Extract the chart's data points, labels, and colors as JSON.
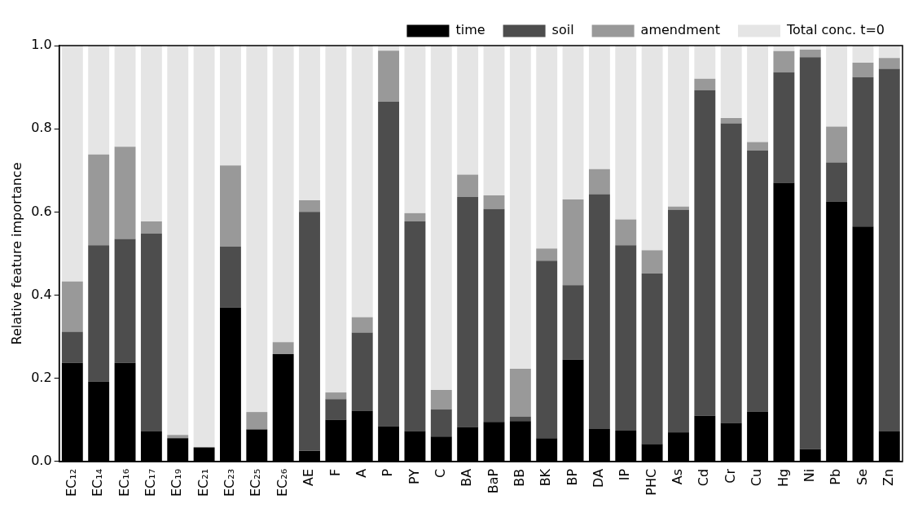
{
  "chart_data": {
    "type": "bar",
    "stacked": true,
    "ylabel": "Relative feature importance",
    "categories": [
      "EC₁₂",
      "EC₁₄",
      "EC₁₆",
      "EC₁₇",
      "EC₁₉",
      "EC₂₁",
      "EC₂₃",
      "EC₂₅",
      "EC₂₆",
      "AE",
      "F",
      "A",
      "P",
      "PY",
      "C",
      "BA",
      "BaP",
      "BB",
      "BK",
      "BP",
      "DA",
      "IP",
      "PHC",
      "As",
      "Cd",
      "Cr",
      "Cu",
      "Hg",
      "Ni",
      "Pb",
      "Se",
      "Zn"
    ],
    "series": [
      {
        "name": "time",
        "color": "#000000",
        "values": [
          0.237,
          0.192,
          0.237,
          0.072,
          0.056,
          0.034,
          0.37,
          0.077,
          0.258,
          0.026,
          0.1,
          0.122,
          0.085,
          0.073,
          0.06,
          0.083,
          0.095,
          0.097,
          0.056,
          0.245,
          0.078,
          0.074,
          0.042,
          0.07,
          0.11,
          0.093,
          0.12,
          0.67,
          0.03,
          0.625,
          0.565,
          0.072
        ]
      },
      {
        "name": "soil",
        "color": "#4d4d4d",
        "values": [
          0.075,
          0.328,
          0.298,
          0.476,
          0,
          0,
          0.147,
          0,
          0,
          0.574,
          0.05,
          0.188,
          0.78,
          0.504,
          0.065,
          0.553,
          0.512,
          0.011,
          0.427,
          0.179,
          0.565,
          0.446,
          0.41,
          0.535,
          0.783,
          0.72,
          0.628,
          0.266,
          0.942,
          0.094,
          0.359,
          0.872
        ]
      },
      {
        "name": "amendment",
        "color": "#999999",
        "values": [
          0.121,
          0.218,
          0.222,
          0.029,
          0.008,
          0,
          0.195,
          0.042,
          0.029,
          0.028,
          0.016,
          0.037,
          0.123,
          0.02,
          0.047,
          0.054,
          0.033,
          0.115,
          0.029,
          0.206,
          0.06,
          0.062,
          0.056,
          0.008,
          0.027,
          0.013,
          0.02,
          0.051,
          0.018,
          0.086,
          0.035,
          0.026
        ]
      },
      {
        "name": "Total conc. t=0",
        "color": "#e5e5e5",
        "values": [
          0.567,
          0.262,
          0.243,
          0.423,
          0.936,
          0.966,
          0.288,
          0.881,
          0.713,
          0.372,
          0.834,
          0.653,
          0.012,
          0.403,
          0.828,
          0.31,
          0.36,
          0.777,
          0.488,
          0.37,
          0.297,
          0.418,
          0.492,
          0.387,
          0.08,
          0.174,
          0.232,
          0.013,
          0.01,
          0.195,
          0.041,
          0.03
        ]
      }
    ],
    "ylim": [
      0,
      1.0
    ],
    "yticks": [
      {
        "value": 0,
        "label": "0.0"
      },
      {
        "value": 0.2,
        "label": "0.2"
      },
      {
        "value": 0.4,
        "label": "0.4"
      },
      {
        "value": 0.6,
        "label": "0.6"
      },
      {
        "value": 0.8,
        "label": "0.8"
      },
      {
        "value": 1.0,
        "label": "1.0"
      }
    ],
    "grid": false,
    "legend": "top right"
  }
}
